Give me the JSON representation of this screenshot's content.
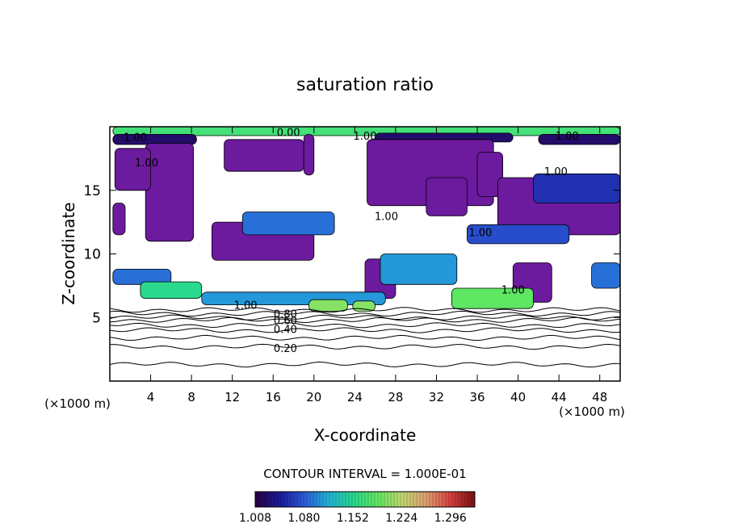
{
  "chart_data": {
    "type": "heatmap",
    "title": "saturation ratio",
    "xlabel": "X-coordinate",
    "ylabel": "Z-coordinate",
    "x_unit": "(×1000 m)",
    "z_unit": "(×1000 m)",
    "xlim": [
      0,
      50
    ],
    "ylim": [
      0,
      20
    ],
    "x_ticks": [
      4,
      8,
      12,
      16,
      20,
      24,
      28,
      32,
      36,
      40,
      44,
      48
    ],
    "y_ticks": [
      5,
      10,
      15
    ],
    "contour_interval_text": "CONTOUR INTERVAL = 1.000E-01",
    "colorbar": {
      "min": 1.008,
      "max": 1.332,
      "tick_values": [
        1.008,
        1.08,
        1.152,
        1.224,
        1.296
      ],
      "tick_labels": [
        "1.008",
        "1.080",
        "1.152",
        "1.224",
        "1.296"
      ],
      "colormap": [
        "#2a0040",
        "#1a1a9a",
        "#2a5ad8",
        "#22b2d8",
        "#28d890",
        "#60e860",
        "#c0d870",
        "#e0a070",
        "#d84040",
        "#7a1010"
      ]
    },
    "contour_labels": [
      {
        "text": "1.00",
        "x": 2.5,
        "z": 19.2
      },
      {
        "text": "0.00",
        "x": 17.5,
        "z": 19.6
      },
      {
        "text": "1.00",
        "x": 25.0,
        "z": 19.3
      },
      {
        "text": "1.00",
        "x": 44.8,
        "z": 19.3
      },
      {
        "text": "1.00",
        "x": 3.6,
        "z": 17.2
      },
      {
        "text": "1.00",
        "x": 43.7,
        "z": 16.5
      },
      {
        "text": "1.00",
        "x": 27.1,
        "z": 13.0
      },
      {
        "text": "1.00",
        "x": 36.3,
        "z": 11.7
      },
      {
        "text": "1.00",
        "x": 39.5,
        "z": 7.2
      },
      {
        "text": "1.00",
        "x": 13.3,
        "z": 6.0
      },
      {
        "text": "0.80",
        "x": 17.2,
        "z": 5.3
      },
      {
        "text": "0.60",
        "x": 17.2,
        "z": 4.8
      },
      {
        "text": "0.40",
        "x": 17.2,
        "z": 4.1
      },
      {
        "text": "0.20",
        "x": 17.2,
        "z": 2.6
      }
    ],
    "contour_levels": [
      {
        "value": 0.1,
        "z": 1.3
      },
      {
        "value": 0.2,
        "z": 2.7
      },
      {
        "value": 0.3,
        "z": 3.4
      },
      {
        "value": 0.4,
        "z": 4.0
      },
      {
        "value": 0.5,
        "z": 4.4
      },
      {
        "value": 0.6,
        "z": 4.8
      },
      {
        "value": 0.7,
        "z": 5.0
      },
      {
        "value": 0.8,
        "z": 5.3
      },
      {
        "value": 0.9,
        "z": 5.6
      }
    ],
    "regions": [
      {
        "level": 0.5,
        "z0": 19.3,
        "z1": 20.0,
        "x0": 0.3,
        "x1": 50.0
      },
      {
        "level": 0.05,
        "z0": 18.6,
        "z1": 19.4,
        "x0": 0.3,
        "x1": 8.5
      },
      {
        "level": 0.05,
        "z0": 18.8,
        "z1": 19.5,
        "x0": 26.0,
        "x1": 39.5
      },
      {
        "level": 0.05,
        "z0": 18.6,
        "z1": 19.4,
        "x0": 42.0,
        "x1": 50.0
      },
      {
        "level": 0.0,
        "z0": 11.0,
        "z1": 18.7,
        "x0": 3.5,
        "x1": 8.2
      },
      {
        "level": 0.0,
        "z0": 15.0,
        "z1": 18.3,
        "x0": 0.5,
        "x1": 4.0
      },
      {
        "level": 0.0,
        "z0": 11.5,
        "z1": 14.0,
        "x0": 0.3,
        "x1": 1.5
      },
      {
        "level": 0.0,
        "z0": 16.5,
        "z1": 19.0,
        "x0": 11.2,
        "x1": 19.0
      },
      {
        "level": 0.0,
        "z0": 16.2,
        "z1": 19.4,
        "x0": 19.0,
        "x1": 20.0
      },
      {
        "level": 0.0,
        "z0": 13.8,
        "z1": 19.0,
        "x0": 25.2,
        "x1": 37.6
      },
      {
        "level": 0.0,
        "z0": 13.0,
        "z1": 16.0,
        "x0": 31.0,
        "x1": 35.0
      },
      {
        "level": 0.0,
        "z0": 14.5,
        "z1": 18.0,
        "x0": 36.0,
        "x1": 38.5
      },
      {
        "level": 0.0,
        "z0": 11.5,
        "z1": 16.0,
        "x0": 38.0,
        "x1": 50.0
      },
      {
        "level": 0.0,
        "z0": 9.5,
        "z1": 12.5,
        "x0": 10.0,
        "x1": 20.0
      },
      {
        "level": 0.0,
        "z0": 6.5,
        "z1": 9.6,
        "x0": 25.0,
        "x1": 28.0
      },
      {
        "level": 0.0,
        "z0": 6.2,
        "z1": 9.3,
        "x0": 39.5,
        "x1": 43.3
      },
      {
        "level": 0.25,
        "z0": 11.5,
        "z1": 13.3,
        "x0": 13.0,
        "x1": 22.0
      },
      {
        "level": 0.2,
        "z0": 10.8,
        "z1": 12.3,
        "x0": 35.0,
        "x1": 45.0
      },
      {
        "level": 0.15,
        "z0": 14.0,
        "z1": 16.3,
        "x0": 41.5,
        "x1": 50.0
      },
      {
        "level": 0.25,
        "z0": 7.6,
        "z1": 8.8,
        "x0": 0.3,
        "x1": 6.0
      },
      {
        "level": 0.45,
        "z0": 6.5,
        "z1": 7.8,
        "x0": 3.0,
        "x1": 9.0
      },
      {
        "level": 0.3,
        "z0": 6.0,
        "z1": 7.0,
        "x0": 9.0,
        "x1": 27.0
      },
      {
        "level": 0.6,
        "z0": 5.5,
        "z1": 6.4,
        "x0": 19.5,
        "x1": 23.3
      },
      {
        "level": 0.6,
        "z0": 5.5,
        "z1": 6.3,
        "x0": 23.8,
        "x1": 26.0
      },
      {
        "level": 0.3,
        "z0": 7.6,
        "z1": 10.0,
        "x0": 26.5,
        "x1": 34.0
      },
      {
        "level": 0.55,
        "z0": 5.7,
        "z1": 7.3,
        "x0": 33.5,
        "x1": 41.5
      },
      {
        "level": 0.25,
        "z0": 7.3,
        "z1": 9.3,
        "x0": 47.2,
        "x1": 50.0
      }
    ]
  }
}
